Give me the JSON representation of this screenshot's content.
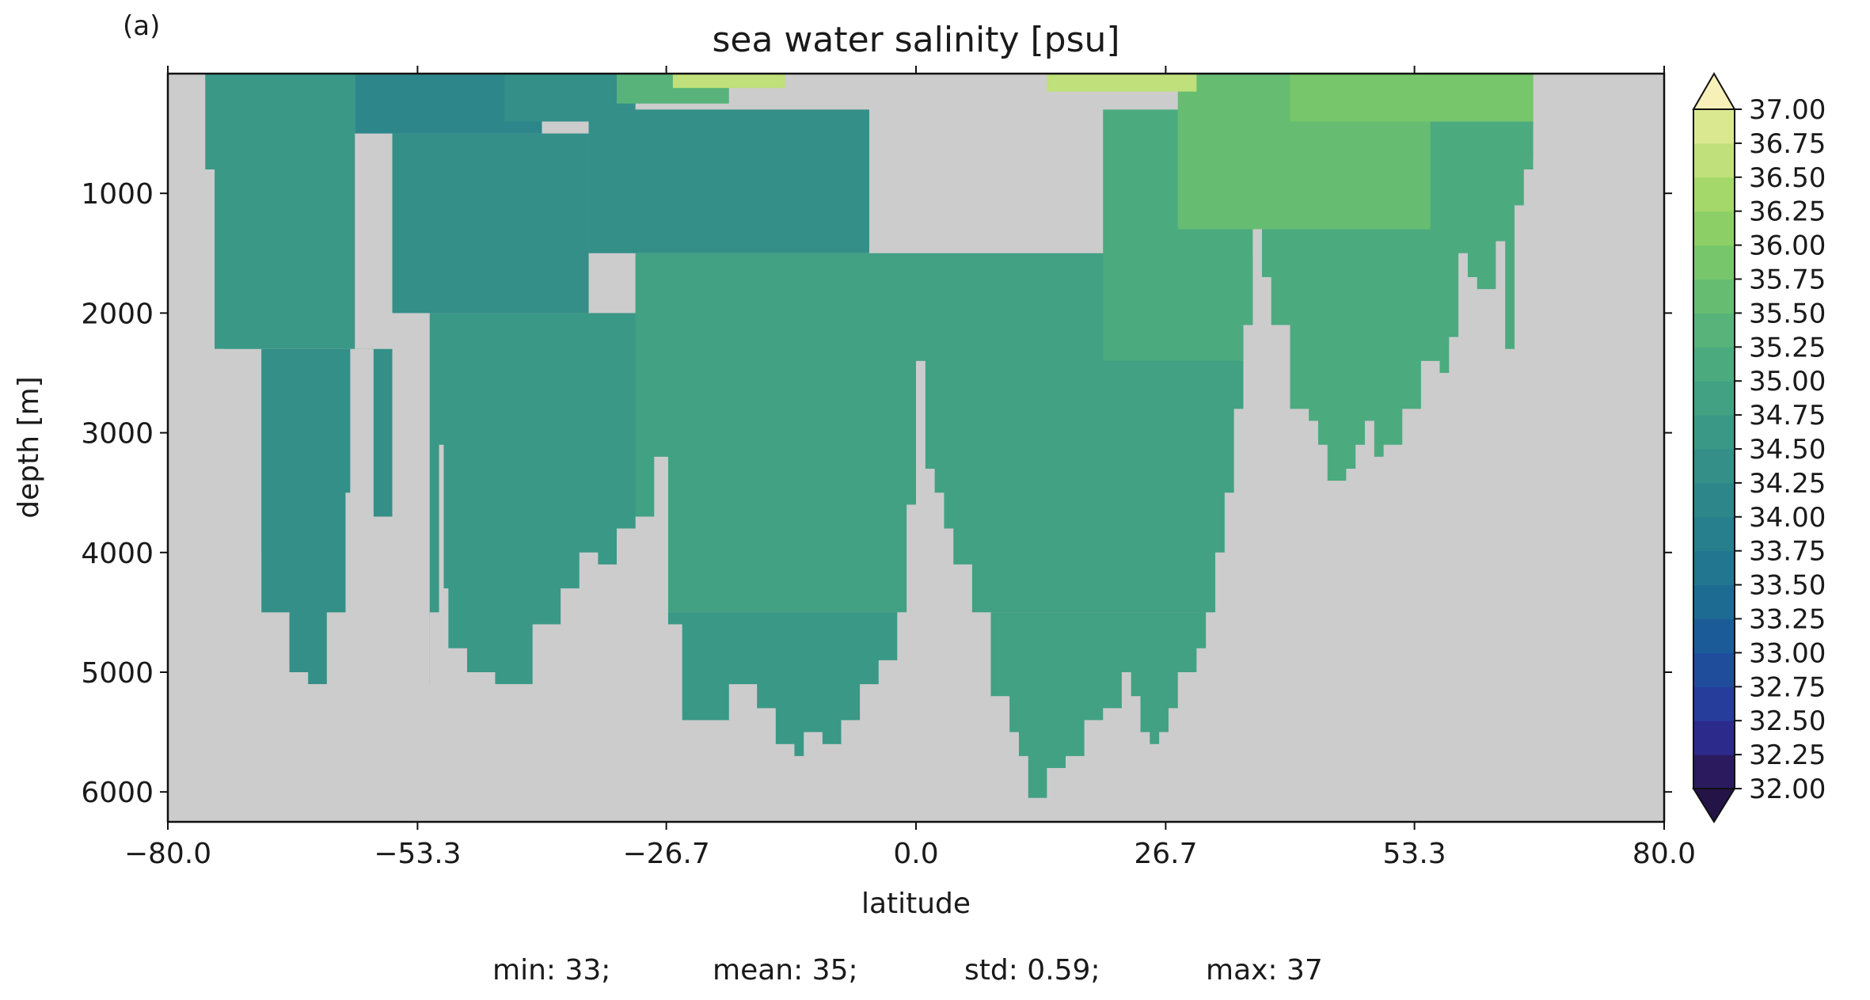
{
  "chart_data": {
    "type": "heatmap",
    "panel_label": "(a)",
    "title": "sea water salinity [psu]",
    "xlabel": "latitude",
    "ylabel": "depth [m]",
    "xlim": [
      -80.0,
      80.0
    ],
    "ylim": [
      0,
      6250
    ],
    "y_inverted": true,
    "x_ticks": [
      -80.0,
      -53.3,
      -26.7,
      0.0,
      26.7,
      53.3,
      80.0
    ],
    "x_tick_labels": [
      "−80.0",
      "−53.3",
      "−26.7",
      "0.0",
      "26.7",
      "53.3",
      "80.0"
    ],
    "y_ticks": [
      1000,
      2000,
      3000,
      4000,
      5000,
      6000
    ],
    "y_tick_labels": [
      "1000",
      "2000",
      "3000",
      "4000",
      "5000",
      "6000"
    ],
    "colorbar": {
      "levels": [
        32.0,
        32.25,
        32.5,
        32.75,
        33.0,
        33.25,
        33.5,
        33.75,
        34.0,
        34.25,
        34.5,
        34.75,
        35.0,
        35.25,
        35.5,
        35.75,
        36.0,
        36.25,
        36.5,
        36.75,
        37.0
      ],
      "labels": [
        "32.00",
        "32.25",
        "32.50",
        "32.75",
        "33.00",
        "33.25",
        "33.50",
        "33.75",
        "34.00",
        "34.25",
        "34.50",
        "34.75",
        "35.00",
        "35.25",
        "35.50",
        "35.75",
        "36.00",
        "36.25",
        "36.50",
        "36.75",
        "37.00"
      ],
      "extend": "both",
      "colors": [
        "#2b1a5e",
        "#2c2a8a",
        "#263d9c",
        "#1f4d9c",
        "#1b5c98",
        "#1d6a93",
        "#22768f",
        "#277e8c",
        "#2d868a",
        "#338f88",
        "#3a9886",
        "#42a183",
        "#4caa7f",
        "#58b37a",
        "#66bd72",
        "#77c66b",
        "#8ccf67",
        "#a4d86a",
        "#bfe07a",
        "#dae890",
        "#f2eea6"
      ],
      "under_color": "#241346",
      "over_color": "#f7f0b8"
    },
    "land_color": "#cccccc",
    "stats": {
      "min_label": "min: 33;",
      "mean_label": "mean: 35;",
      "std_label": "std: 0.59;",
      "max_label": "max: 37"
    },
    "bottom_profile": {
      "lat": [
        -76.5,
        -75,
        -74,
        -72.5,
        -70,
        -67,
        -65,
        -63,
        -61,
        -60.5,
        -58,
        -56,
        -54,
        -53,
        -52,
        -51,
        -50.5,
        -50,
        -48,
        -45,
        -43,
        -41,
        -38,
        -36,
        -34,
        -32,
        -30,
        -28,
        -26.5,
        -25,
        -22,
        -20,
        -17,
        -15,
        -13,
        -12,
        -10,
        -8,
        -6,
        -4,
        -2,
        -1,
        0,
        1,
        2,
        3,
        4,
        6,
        8,
        10,
        11,
        12,
        14,
        16,
        18,
        20,
        22,
        23,
        24,
        25,
        26,
        27,
        28,
        30,
        31,
        32,
        33,
        34,
        35,
        36,
        37,
        38,
        40,
        42,
        43,
        44,
        46,
        47,
        48,
        49,
        50,
        52,
        54,
        56,
        57,
        58,
        59,
        60,
        62,
        63,
        64,
        65,
        66,
        67,
        68,
        69
      ],
      "depth": [
        800,
        2300,
        3100,
        4000,
        4500,
        5000,
        5100,
        4500,
        3500,
        2300,
        3700,
        3500,
        3900,
        6250,
        4500,
        3100,
        4300,
        4800,
        5000,
        5100,
        5100,
        4600,
        4300,
        4000,
        4100,
        3800,
        3700,
        3200,
        4600,
        5400,
        5400,
        5100,
        5300,
        5600,
        5700,
        5500,
        5600,
        5400,
        5100,
        4900,
        4500,
        3600,
        2400,
        3300,
        3500,
        3800,
        4100,
        4500,
        5200,
        5500,
        5700,
        6050,
        5800,
        5700,
        5400,
        5300,
        5000,
        5200,
        5500,
        5600,
        5500,
        5300,
        5000,
        4800,
        4500,
        4000,
        3500,
        2800,
        2100,
        1300,
        1700,
        2100,
        2800,
        2900,
        3100,
        3400,
        3300,
        3100,
        2900,
        3200,
        3100,
        2800,
        2400,
        2500,
        2200,
        1500,
        1700,
        1800,
        1400,
        2300,
        1100,
        800,
        700,
        330,
        250,
        0
      ]
    },
    "field_bands": [
      {
        "lat": [
          -76,
          -60
        ],
        "top": 0,
        "bottom": 2300,
        "value": 34.6
      },
      {
        "lat": [
          -70,
          -56
        ],
        "top": 2300,
        "bottom": 5100,
        "value": 34.4
      },
      {
        "lat": [
          -56,
          -35
        ],
        "top": 500,
        "bottom": 2000,
        "value": 34.4
      },
      {
        "lat": [
          -52,
          -28
        ],
        "top": 2000,
        "bottom": 5100,
        "value": 34.5
      },
      {
        "lat": [
          -60,
          -40
        ],
        "top": 0,
        "bottom": 500,
        "value": 34.1
      },
      {
        "lat": [
          -44,
          -30
        ],
        "top": 0,
        "bottom": 400,
        "value": 34.3
      },
      {
        "lat": [
          -35,
          -5
        ],
        "top": 300,
        "bottom": 1500,
        "value": 34.3
      },
      {
        "lat": [
          -30,
          40
        ],
        "top": 1500,
        "bottom": 4500,
        "value": 34.9
      },
      {
        "lat": [
          -28,
          -2
        ],
        "top": 4500,
        "bottom": 5800,
        "value": 34.6
      },
      {
        "lat": [
          0,
          40
        ],
        "top": 4500,
        "bottom": 6100,
        "value": 34.85
      },
      {
        "lat": [
          20,
          45
        ],
        "top": 300,
        "bottom": 2400,
        "value": 35.1
      },
      {
        "lat": [
          35,
          66
        ],
        "top": 400,
        "bottom": 3500,
        "value": 35.05
      },
      {
        "lat": [
          28,
          55
        ],
        "top": 0,
        "bottom": 1300,
        "value": 35.6
      },
      {
        "lat": [
          -32,
          -20
        ],
        "top": 0,
        "bottom": 250,
        "value": 35.4
      },
      {
        "lat": [
          -26,
          -14
        ],
        "top": 0,
        "bottom": 120,
        "value": 36.7
      },
      {
        "lat": [
          14,
          30
        ],
        "top": 0,
        "bottom": 150,
        "value": 36.6
      },
      {
        "lat": [
          40,
          66
        ],
        "top": 0,
        "bottom": 400,
        "value": 35.9
      }
    ]
  }
}
